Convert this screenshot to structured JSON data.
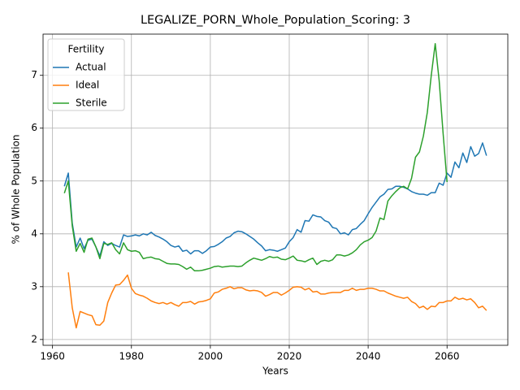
{
  "chart_data": {
    "type": "line",
    "title": "LEGALIZE_PORN_Whole_Population_Scoring: 3",
    "x_label": "Years",
    "y_label": "% of Whole Population",
    "legend_title": "Fertility",
    "legend_position": "upper left",
    "grid": true,
    "xlim": [
      1957.6,
      2075.4
    ],
    "ylim": [
      1.89,
      7.78
    ],
    "xticks": [
      1960,
      1980,
      2000,
      2020,
      2040,
      2060
    ],
    "yticks": [
      2,
      3,
      4,
      5,
      6,
      7
    ],
    "x": [
      1963,
      1964,
      1965,
      1966,
      1967,
      1968,
      1969,
      1970,
      1971,
      1972,
      1973,
      1974,
      1975,
      1976,
      1977,
      1978,
      1979,
      1980,
      1981,
      1982,
      1983,
      1984,
      1985,
      1986,
      1987,
      1988,
      1989,
      1990,
      1991,
      1992,
      1993,
      1994,
      1995,
      1996,
      1997,
      1998,
      1999,
      2000,
      2001,
      2002,
      2003,
      2004,
      2005,
      2006,
      2007,
      2008,
      2009,
      2010,
      2011,
      2012,
      2013,
      2014,
      2015,
      2016,
      2017,
      2018,
      2019,
      2020,
      2021,
      2022,
      2023,
      2024,
      2025,
      2026,
      2027,
      2028,
      2029,
      2030,
      2031,
      2032,
      2033,
      2034,
      2035,
      2036,
      2037,
      2038,
      2039,
      2040,
      2041,
      2042,
      2043,
      2044,
      2045,
      2046,
      2047,
      2048,
      2049,
      2050,
      2051,
      2052,
      2053,
      2054,
      2055,
      2056,
      2057,
      2058,
      2059,
      2060,
      2061,
      2062,
      2063,
      2064,
      2065,
      2066,
      2067,
      2068,
      2069,
      2070
    ],
    "series": [
      {
        "name": "Actual",
        "color": "#1f77b4",
        "values": [
          4.9,
          5.15,
          4.2,
          3.75,
          3.92,
          3.72,
          3.88,
          3.9,
          3.75,
          3.58,
          3.85,
          3.78,
          3.82,
          3.78,
          3.75,
          3.98,
          3.95,
          3.96,
          3.98,
          3.96,
          4.0,
          3.98,
          4.03,
          3.97,
          3.94,
          3.9,
          3.85,
          3.78,
          3.75,
          3.77,
          3.67,
          3.69,
          3.62,
          3.68,
          3.68,
          3.63,
          3.68,
          3.75,
          3.76,
          3.8,
          3.85,
          3.92,
          3.95,
          4.02,
          4.05,
          4.04,
          4.0,
          3.95,
          3.9,
          3.83,
          3.77,
          3.68,
          3.7,
          3.69,
          3.67,
          3.7,
          3.73,
          3.85,
          3.93,
          4.08,
          4.03,
          4.25,
          4.24,
          4.36,
          4.33,
          4.32,
          4.25,
          4.22,
          4.12,
          4.1,
          4.0,
          4.02,
          3.98,
          4.08,
          4.1,
          4.18,
          4.25,
          4.38,
          4.5,
          4.6,
          4.7,
          4.75,
          4.84,
          4.85,
          4.9,
          4.9,
          4.88,
          4.85,
          4.8,
          4.77,
          4.75,
          4.75,
          4.73,
          4.78,
          4.78,
          4.96,
          4.92,
          5.15,
          5.07,
          5.36,
          5.25,
          5.53,
          5.35,
          5.65,
          5.47,
          5.52,
          5.72,
          5.48
        ]
      },
      {
        "name": "Ideal",
        "color": "#ff7f0e",
        "values": [
          null,
          3.27,
          2.6,
          2.22,
          2.53,
          2.5,
          2.47,
          2.45,
          2.28,
          2.27,
          2.35,
          2.7,
          2.88,
          3.03,
          3.04,
          3.12,
          3.22,
          2.97,
          2.87,
          2.84,
          2.82,
          2.78,
          2.73,
          2.7,
          2.68,
          2.7,
          2.67,
          2.7,
          2.66,
          2.63,
          2.7,
          2.7,
          2.72,
          2.67,
          2.71,
          2.72,
          2.74,
          2.77,
          2.88,
          2.9,
          2.95,
          2.97,
          3.0,
          2.96,
          2.98,
          2.98,
          2.94,
          2.92,
          2.93,
          2.92,
          2.89,
          2.82,
          2.85,
          2.89,
          2.89,
          2.84,
          2.88,
          2.93,
          2.99,
          3.0,
          2.99,
          2.94,
          2.97,
          2.9,
          2.91,
          2.86,
          2.86,
          2.88,
          2.89,
          2.89,
          2.89,
          2.93,
          2.93,
          2.97,
          2.93,
          2.95,
          2.95,
          2.97,
          2.97,
          2.95,
          2.92,
          2.92,
          2.88,
          2.85,
          2.82,
          2.8,
          2.78,
          2.8,
          2.72,
          2.68,
          2.6,
          2.63,
          2.57,
          2.63,
          2.62,
          2.7,
          2.7,
          2.73,
          2.73,
          2.8,
          2.76,
          2.78,
          2.75,
          2.77,
          2.7,
          2.6,
          2.63,
          2.55
        ]
      },
      {
        "name": "Sterile",
        "color": "#2ca02c",
        "values": [
          4.77,
          5.0,
          4.15,
          3.67,
          3.82,
          3.65,
          3.9,
          3.92,
          3.75,
          3.53,
          3.82,
          3.8,
          3.83,
          3.7,
          3.62,
          3.83,
          3.7,
          3.67,
          3.68,
          3.65,
          3.53,
          3.55,
          3.56,
          3.53,
          3.52,
          3.48,
          3.44,
          3.43,
          3.43,
          3.42,
          3.38,
          3.33,
          3.37,
          3.3,
          3.3,
          3.31,
          3.33,
          3.35,
          3.38,
          3.39,
          3.37,
          3.38,
          3.39,
          3.39,
          3.38,
          3.39,
          3.45,
          3.5,
          3.54,
          3.52,
          3.5,
          3.53,
          3.57,
          3.55,
          3.56,
          3.52,
          3.51,
          3.54,
          3.58,
          3.5,
          3.49,
          3.47,
          3.51,
          3.54,
          3.42,
          3.48,
          3.5,
          3.48,
          3.51,
          3.6,
          3.6,
          3.58,
          3.6,
          3.64,
          3.7,
          3.79,
          3.85,
          3.88,
          3.93,
          4.05,
          4.3,
          4.27,
          4.62,
          4.72,
          4.8,
          4.87,
          4.9,
          4.85,
          5.05,
          5.45,
          5.55,
          5.85,
          6.3,
          7.0,
          7.6,
          6.9,
          5.9,
          4.98,
          null,
          null,
          null,
          null,
          null,
          null,
          null,
          null,
          null,
          null
        ]
      }
    ]
  }
}
